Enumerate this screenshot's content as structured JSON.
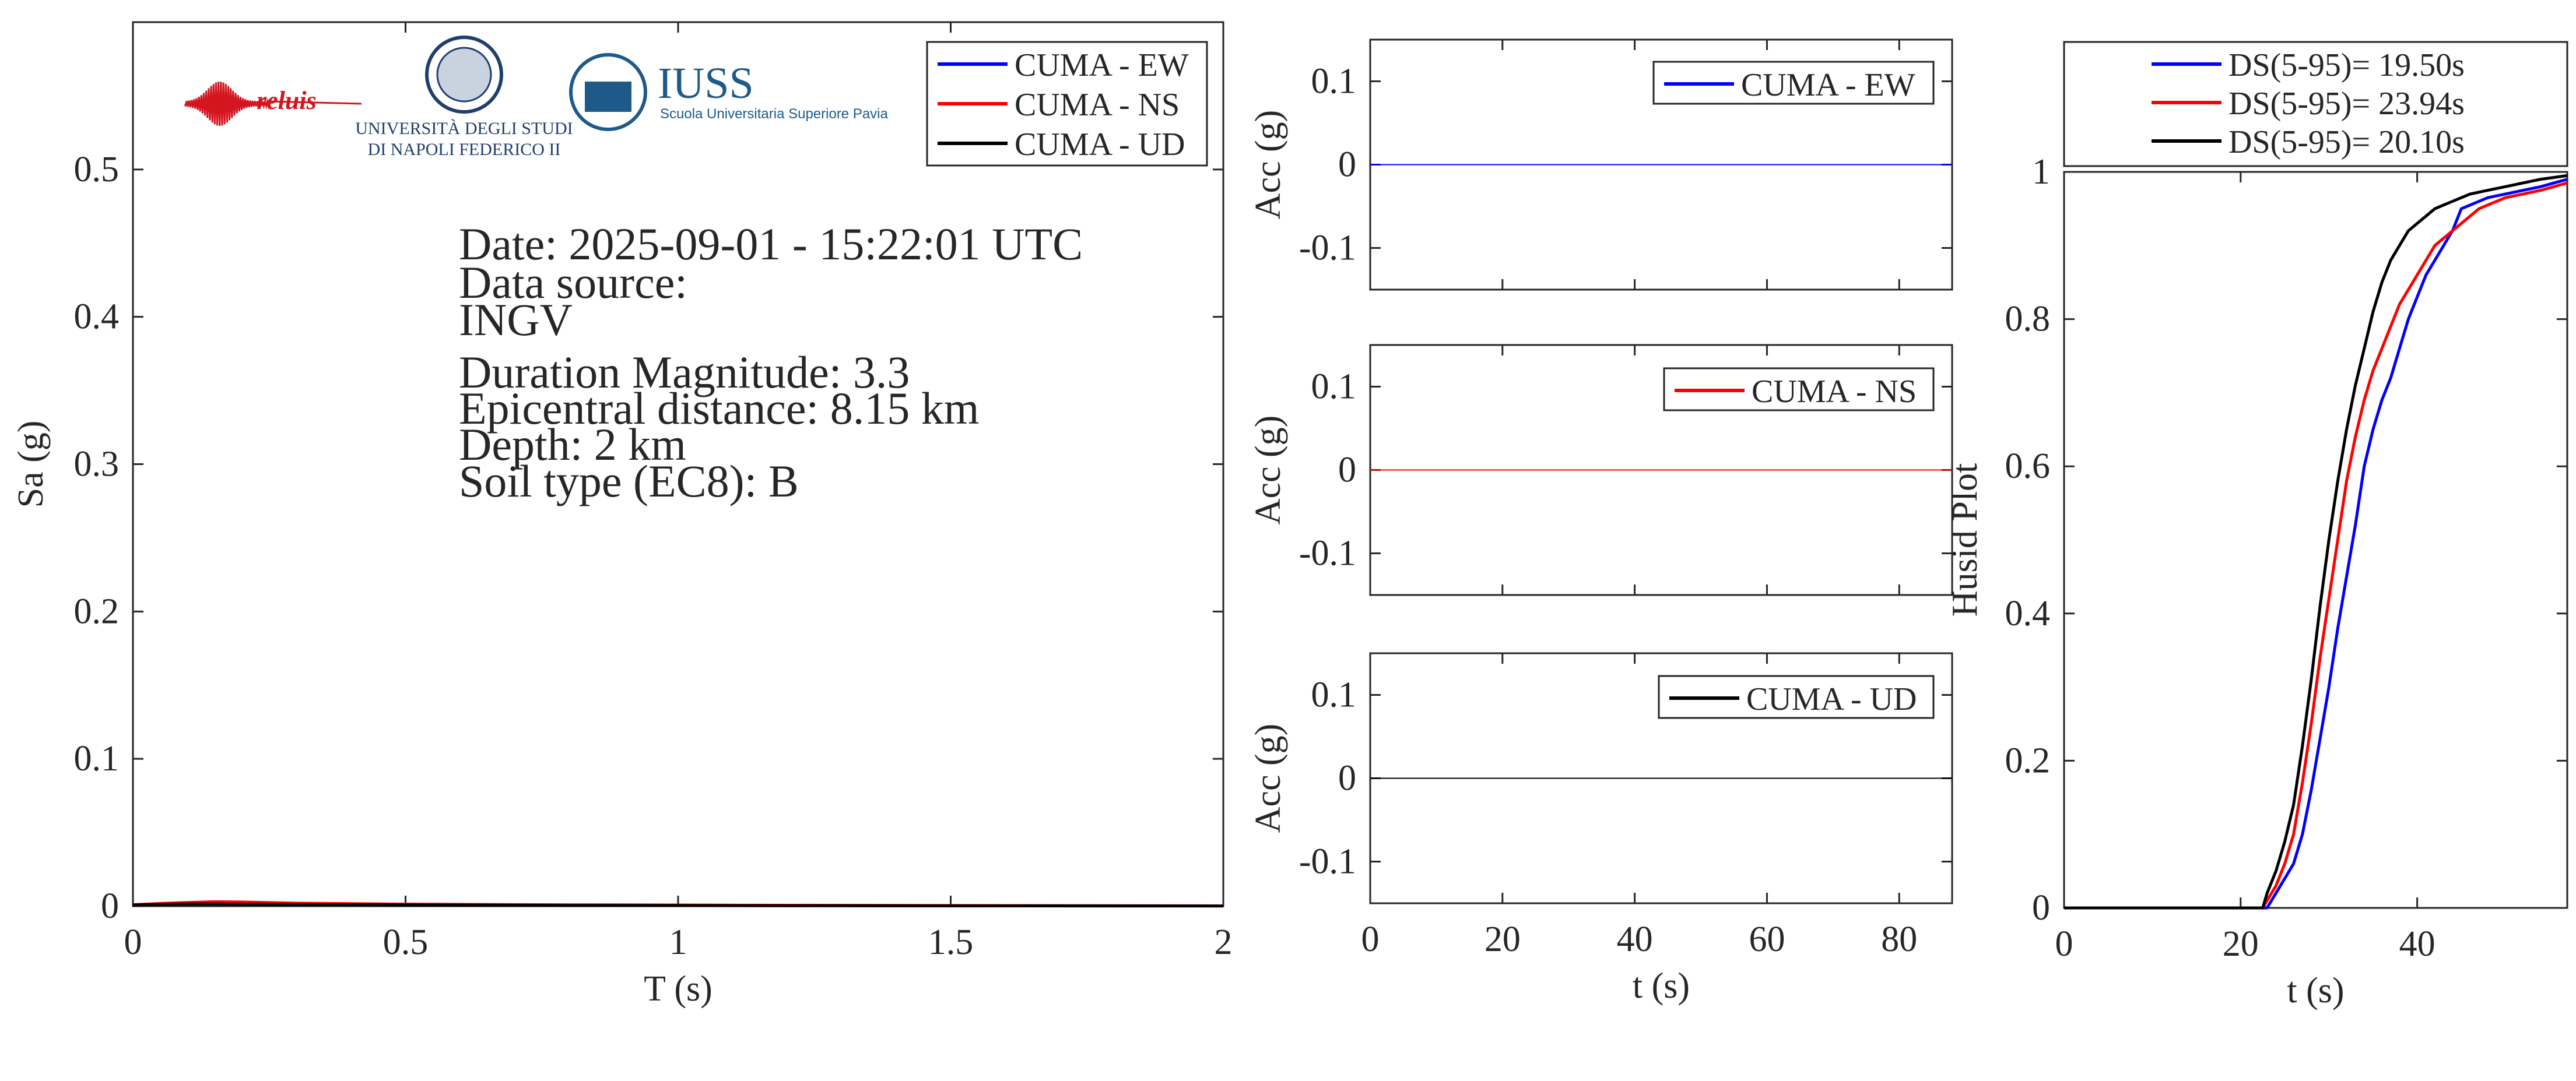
{
  "colors": {
    "ew": "#0000ff",
    "ns": "#ff0000",
    "ud": "#000000",
    "axis": "#262626",
    "iuss": "#1d5a8a",
    "reluis": "#d4141f"
  },
  "logos": {
    "reluis": "reluis",
    "unina_line1": "UNIVERSITÀ DEGLI STUDI",
    "unina_line2": "DI NAPOLI FEDERICO II",
    "iuss_title": "IUSS",
    "iuss_subtitle": "Scuola Universitaria Superiore Pavia"
  },
  "info": {
    "date": "Date: 2025-09-01 - 15:22:01 UTC",
    "source_label": "Data source:",
    "source": "INGV",
    "magnitude": "Duration Magnitude: 3.3",
    "distance": "Epicentral distance: 8.15 km",
    "depth": "Depth: 2 km",
    "soil": "Soil type (EC8): B"
  },
  "chart_data": [
    {
      "id": "spectrum",
      "type": "line",
      "xlabel": "T (s)",
      "ylabel": "Sa (g)",
      "xlim": [
        0,
        2
      ],
      "ylim": [
        0,
        0.6
      ],
      "xticks": [
        0,
        0.5,
        1,
        1.5,
        2
      ],
      "xtick_labels": [
        "0",
        "0.5",
        "1",
        "1.5",
        "2"
      ],
      "yticks": [
        0,
        0.1,
        0.2,
        0.3,
        0.4,
        0.5
      ],
      "ytick_labels": [
        "0",
        "0.1",
        "0.2",
        "0.3",
        "0.4",
        "0.5"
      ],
      "legend_position": "top-right",
      "series": [
        {
          "name": "CUMA - EW",
          "color": "#0000ff",
          "x": [
            0,
            0.05,
            0.1,
            0.15,
            0.2,
            0.3,
            0.5,
            0.8,
            1.2,
            1.6,
            2.0
          ],
          "y": [
            0.001,
            0.0015,
            0.002,
            0.0025,
            0.002,
            0.0018,
            0.0012,
            0.0008,
            0.0005,
            0.0003,
            0.0002
          ]
        },
        {
          "name": "CUMA - NS",
          "color": "#ff0000",
          "x": [
            0,
            0.05,
            0.1,
            0.15,
            0.2,
            0.3,
            0.5,
            0.8,
            1.2,
            1.6,
            2.0
          ],
          "y": [
            0.001,
            0.0018,
            0.0025,
            0.003,
            0.0028,
            0.002,
            0.0014,
            0.0009,
            0.0006,
            0.0004,
            0.0002
          ]
        },
        {
          "name": "CUMA - UD",
          "color": "#000000",
          "x": [
            0,
            0.05,
            0.1,
            0.15,
            0.2,
            0.3,
            0.5,
            0.8,
            1.2,
            1.6,
            2.0
          ],
          "y": [
            0.0008,
            0.0012,
            0.0015,
            0.0015,
            0.0013,
            0.0011,
            0.0008,
            0.0005,
            0.0003,
            0.0002,
            0.0001
          ]
        }
      ]
    },
    {
      "id": "acc_ew",
      "type": "line",
      "xlabel": "",
      "ylabel": "Acc (g)",
      "xlim": [
        0,
        88
      ],
      "ylim": [
        -0.15,
        0.15
      ],
      "yticks": [
        -0.1,
        0,
        0.1
      ],
      "ytick_labels": [
        "-0.1",
        "0",
        "0.1"
      ],
      "legend_position": "top-right",
      "series": [
        {
          "name": "CUMA - EW",
          "color": "#0000ff",
          "x": [
            0,
            88
          ],
          "y": [
            0,
            0
          ]
        }
      ]
    },
    {
      "id": "acc_ns",
      "type": "line",
      "xlabel": "",
      "ylabel": "Acc (g)",
      "xlim": [
        0,
        88
      ],
      "ylim": [
        -0.15,
        0.15
      ],
      "yticks": [
        -0.1,
        0,
        0.1
      ],
      "ytick_labels": [
        "-0.1",
        "0",
        "0.1"
      ],
      "legend_position": "top-right",
      "series": [
        {
          "name": "CUMA - NS",
          "color": "#ff0000",
          "x": [
            0,
            88
          ],
          "y": [
            0,
            0
          ]
        }
      ]
    },
    {
      "id": "acc_ud",
      "type": "line",
      "xlabel": "t (s)",
      "ylabel": "Acc (g)",
      "xlim": [
        0,
        88
      ],
      "ylim": [
        -0.15,
        0.15
      ],
      "xticks": [
        0,
        20,
        40,
        60,
        80
      ],
      "xtick_labels": [
        "0",
        "20",
        "40",
        "60",
        "80"
      ],
      "yticks": [
        -0.1,
        0,
        0.1
      ],
      "ytick_labels": [
        "-0.1",
        "0",
        "0.1"
      ],
      "legend_position": "top-right",
      "series": [
        {
          "name": "CUMA - UD",
          "color": "#000000",
          "x": [
            0,
            88
          ],
          "y": [
            0,
            0
          ]
        }
      ]
    },
    {
      "id": "husid",
      "type": "line",
      "xlabel": "t (s)",
      "ylabel": "Husid Plot",
      "xlim": [
        0,
        57
      ],
      "ylim": [
        0,
        1
      ],
      "xticks": [
        0,
        20,
        40
      ],
      "xtick_labels": [
        "0",
        "20",
        "40"
      ],
      "yticks": [
        0,
        0.2,
        0.4,
        0.6,
        0.8,
        1
      ],
      "ytick_labels": [
        "0",
        "0.2",
        "0.4",
        "0.6",
        "0.8",
        "1"
      ],
      "legend_position": "above",
      "series": [
        {
          "name": "DS(5-95)= 19.50s",
          "color": "#0000ff",
          "x": [
            0,
            23,
            23.5,
            24,
            25,
            26,
            27,
            28,
            29,
            30,
            31,
            32,
            33,
            34,
            35,
            36,
            37,
            38,
            39,
            40,
            41,
            42,
            43,
            44,
            45,
            46,
            47,
            48,
            50,
            52,
            54,
            57
          ],
          "y": [
            0,
            0,
            0.01,
            0.02,
            0.04,
            0.06,
            0.1,
            0.16,
            0.23,
            0.3,
            0.38,
            0.45,
            0.52,
            0.6,
            0.65,
            0.69,
            0.72,
            0.76,
            0.8,
            0.83,
            0.86,
            0.88,
            0.9,
            0.92,
            0.95,
            0.955,
            0.96,
            0.965,
            0.97,
            0.975,
            0.98,
            0.99
          ]
        },
        {
          "name": "DS(5-95)= 23.94s",
          "color": "#ff0000",
          "x": [
            0,
            22.5,
            23,
            24,
            25,
            26,
            27,
            28,
            29,
            30,
            31,
            32,
            33,
            34,
            35,
            36,
            37,
            38,
            39,
            40,
            41,
            42,
            43,
            44,
            45,
            46,
            47,
            48,
            50,
            52,
            54,
            57
          ],
          "y": [
            0,
            0,
            0.01,
            0.03,
            0.06,
            0.1,
            0.17,
            0.25,
            0.34,
            0.42,
            0.5,
            0.58,
            0.64,
            0.69,
            0.73,
            0.76,
            0.79,
            0.82,
            0.84,
            0.86,
            0.88,
            0.9,
            0.91,
            0.92,
            0.93,
            0.94,
            0.95,
            0.955,
            0.965,
            0.97,
            0.975,
            0.985
          ]
        },
        {
          "name": "DS(5-95)= 20.10s",
          "color": "#000000",
          "x": [
            0,
            22.5,
            23,
            24,
            25,
            26,
            27,
            28,
            29,
            30,
            31,
            32,
            33,
            34,
            35,
            36,
            37,
            38,
            39,
            40,
            41,
            42,
            43,
            44,
            45,
            46,
            48,
            50,
            52,
            54,
            57
          ],
          "y": [
            0,
            0,
            0.02,
            0.05,
            0.09,
            0.14,
            0.22,
            0.31,
            0.41,
            0.5,
            0.58,
            0.65,
            0.71,
            0.76,
            0.81,
            0.85,
            0.88,
            0.9,
            0.92,
            0.93,
            0.94,
            0.95,
            0.955,
            0.96,
            0.965,
            0.97,
            0.975,
            0.98,
            0.985,
            0.99,
            0.995
          ]
        }
      ]
    }
  ]
}
